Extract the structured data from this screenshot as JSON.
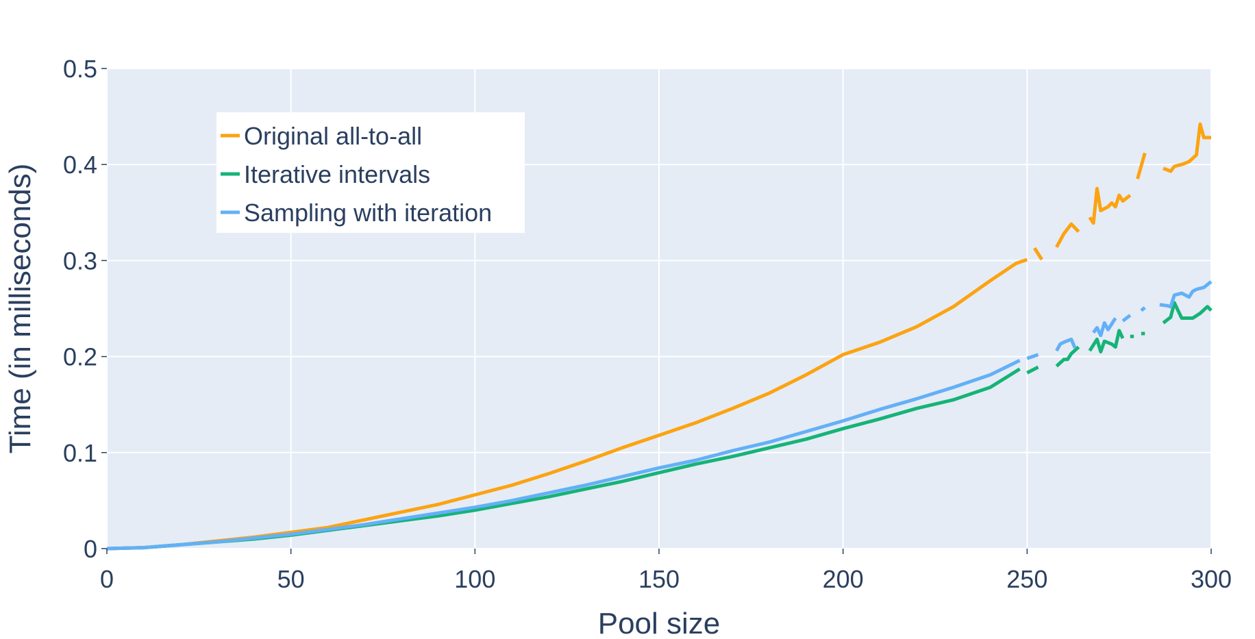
{
  "chart_data": {
    "type": "line",
    "title": "",
    "xlabel": "Pool size",
    "ylabel": "Time (in milliseconds)",
    "xlim": [
      0,
      300
    ],
    "ylim": [
      0,
      0.5
    ],
    "x_ticks": [
      0,
      50,
      100,
      150,
      200,
      250,
      300
    ],
    "x_tick_labels": [
      "0",
      "50",
      "100",
      "150",
      "200",
      "250",
      "300"
    ],
    "y_ticks": [
      0,
      0.1,
      0.2,
      0.3,
      0.4,
      0.5
    ],
    "y_tick_labels": [
      "0",
      "0.1",
      "0.2",
      "0.3",
      "0.4",
      "0.5"
    ],
    "grid": true,
    "legend_position": "top-left",
    "plot_background": "#e5ecf6",
    "grid_color": "#ffffff",
    "text_color": "#2a3f5f",
    "series": [
      {
        "name": "Original all-to-all",
        "color": "#fca311",
        "segments": [
          [
            [
              0,
              0
            ],
            [
              10,
              0.001
            ],
            [
              20,
              0.004
            ],
            [
              30,
              0.008
            ],
            [
              40,
              0.012
            ],
            [
              50,
              0.017
            ],
            [
              60,
              0.022
            ],
            [
              70,
              0.03
            ],
            [
              80,
              0.038
            ],
            [
              90,
              0.046
            ],
            [
              100,
              0.056
            ],
            [
              110,
              0.066
            ],
            [
              120,
              0.078
            ],
            [
              130,
              0.091
            ],
            [
              140,
              0.105
            ],
            [
              150,
              0.118
            ],
            [
              160,
              0.131
            ],
            [
              170,
              0.146
            ],
            [
              180,
              0.162
            ],
            [
              190,
              0.181
            ],
            [
              200,
              0.202
            ],
            [
              210,
              0.215
            ],
            [
              220,
              0.231
            ],
            [
              230,
              0.252
            ],
            [
              240,
              0.279
            ],
            [
              247,
              0.297
            ],
            [
              250,
              0.301
            ]
          ],
          [
            [
              252,
              0.313
            ],
            [
              254,
              0.301
            ]
          ],
          [
            [
              258,
              0.314
            ],
            [
              260,
              0.328
            ],
            [
              262,
              0.338
            ],
            [
              264,
              0.33
            ]
          ],
          [
            [
              267,
              0.345
            ],
            [
              268,
              0.339
            ],
            [
              269,
              0.375
            ],
            [
              270,
              0.352
            ],
            [
              272,
              0.356
            ],
            [
              273,
              0.36
            ],
            [
              274,
              0.356
            ],
            [
              275,
              0.368
            ],
            [
              276,
              0.362
            ],
            [
              278,
              0.368
            ]
          ],
          [
            [
              280,
              0.385
            ],
            [
              282,
              0.412
            ]
          ],
          [
            [
              287,
              0.396
            ],
            [
              289,
              0.393
            ],
            [
              290,
              0.398
            ],
            [
              292,
              0.4
            ],
            [
              294,
              0.403
            ],
            [
              296,
              0.41
            ],
            [
              297,
              0.442
            ],
            [
              298,
              0.428
            ],
            [
              300,
              0.428
            ]
          ]
        ]
      },
      {
        "name": "Iterative intervals",
        "color": "#16b377",
        "segments": [
          [
            [
              0,
              0
            ],
            [
              10,
              0.001
            ],
            [
              20,
              0.004
            ],
            [
              30,
              0.007
            ],
            [
              40,
              0.01
            ],
            [
              50,
              0.014
            ],
            [
              60,
              0.019
            ],
            [
              70,
              0.024
            ],
            [
              80,
              0.029
            ],
            [
              90,
              0.034
            ],
            [
              100,
              0.04
            ],
            [
              110,
              0.047
            ],
            [
              120,
              0.054
            ],
            [
              130,
              0.062
            ],
            [
              140,
              0.07
            ],
            [
              150,
              0.079
            ],
            [
              160,
              0.088
            ],
            [
              170,
              0.096
            ],
            [
              180,
              0.105
            ],
            [
              190,
              0.114
            ],
            [
              200,
              0.125
            ],
            [
              210,
              0.135
            ],
            [
              220,
              0.146
            ],
            [
              230,
              0.155
            ],
            [
              240,
              0.168
            ],
            [
              248,
              0.187
            ]
          ],
          [
            [
              250,
              0.183
            ],
            [
              253,
              0.189
            ]
          ],
          [
            [
              258,
              0.19
            ],
            [
              260,
              0.197
            ],
            [
              261,
              0.197
            ],
            [
              262,
              0.203
            ],
            [
              264,
              0.21
            ]
          ],
          [
            [
              267,
              0.206
            ],
            [
              269,
              0.218
            ],
            [
              270,
              0.205
            ],
            [
              271,
              0.216
            ],
            [
              273,
              0.213
            ],
            [
              274,
              0.21
            ],
            [
              275,
              0.227
            ],
            [
              276,
              0.219
            ]
          ],
          [
            [
              278,
              0.221
            ],
            [
              279,
              0.221
            ]
          ],
          [
            [
              281,
              0.224
            ],
            [
              282,
              0.224
            ]
          ],
          [
            [
              287,
              0.235
            ],
            [
              289,
              0.241
            ],
            [
              290,
              0.256
            ],
            [
              291,
              0.248
            ],
            [
              292,
              0.24
            ],
            [
              294,
              0.24
            ],
            [
              295,
              0.24
            ],
            [
              297,
              0.245
            ],
            [
              299,
              0.252
            ],
            [
              300,
              0.248
            ]
          ]
        ]
      },
      {
        "name": "Sampling with iteration",
        "color": "#63b0f7",
        "segments": [
          [
            [
              0,
              0
            ],
            [
              10,
              0.001
            ],
            [
              20,
              0.004
            ],
            [
              30,
              0.007
            ],
            [
              40,
              0.011
            ],
            [
              50,
              0.015
            ],
            [
              60,
              0.02
            ],
            [
              70,
              0.025
            ],
            [
              80,
              0.031
            ],
            [
              90,
              0.037
            ],
            [
              100,
              0.043
            ],
            [
              110,
              0.05
            ],
            [
              120,
              0.058
            ],
            [
              130,
              0.066
            ],
            [
              140,
              0.075
            ],
            [
              150,
              0.084
            ],
            [
              160,
              0.092
            ],
            [
              170,
              0.102
            ],
            [
              180,
              0.111
            ],
            [
              190,
              0.122
            ],
            [
              200,
              0.133
            ],
            [
              210,
              0.145
            ],
            [
              220,
              0.156
            ],
            [
              230,
              0.168
            ],
            [
              240,
              0.181
            ],
            [
              248,
              0.196
            ]
          ],
          [
            [
              250,
              0.198
            ],
            [
              253,
              0.202
            ]
          ],
          [
            [
              258,
              0.206
            ],
            [
              259,
              0.213
            ],
            [
              260,
              0.215
            ],
            [
              262,
              0.218
            ],
            [
              263,
              0.209
            ]
          ],
          [
            [
              268,
              0.225
            ],
            [
              269,
              0.23
            ],
            [
              270,
              0.222
            ],
            [
              271,
              0.235
            ],
            [
              272,
              0.228
            ],
            [
              274,
              0.24
            ]
          ],
          [
            [
              276,
              0.237
            ],
            [
              278,
              0.243
            ]
          ],
          [
            [
              281,
              0.248
            ],
            [
              282,
              0.251
            ]
          ],
          [
            [
              286,
              0.254
            ],
            [
              288,
              0.253
            ],
            [
              289,
              0.252
            ],
            [
              290,
              0.264
            ],
            [
              292,
              0.266
            ],
            [
              294,
              0.262
            ],
            [
              295,
              0.268
            ],
            [
              296,
              0.27
            ],
            [
              298,
              0.272
            ],
            [
              300,
              0.278
            ]
          ]
        ]
      }
    ]
  }
}
